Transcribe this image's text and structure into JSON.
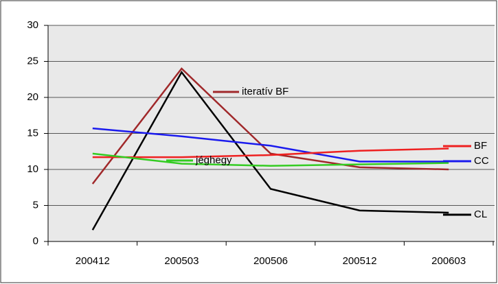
{
  "chart_data": {
    "type": "line",
    "categories": [
      "200412",
      "200503",
      "200506",
      "200512",
      "200603"
    ],
    "series": [
      {
        "name": "iteratív BF",
        "color": "#a0282a",
        "values": [
          8.0,
          24.0,
          12.2,
          10.3,
          10.0
        ]
      },
      {
        "name": "CL",
        "color": "#000000",
        "values": [
          1.6,
          23.5,
          7.3,
          4.3,
          4.0
        ]
      },
      {
        "name": "CC",
        "color": "#1a1aee",
        "values": [
          15.7,
          14.6,
          13.3,
          11.1,
          11.1
        ]
      },
      {
        "name": "BF",
        "color": "#ee2020",
        "values": [
          11.7,
          11.7,
          12.0,
          12.6,
          12.9
        ]
      },
      {
        "name": "jéghegy",
        "color": "#33cc22",
        "values": [
          12.2,
          10.8,
          10.5,
          10.7,
          10.9
        ]
      }
    ],
    "ylim": [
      0,
      30
    ],
    "yticks": [
      0,
      5,
      10,
      15,
      20,
      25,
      30
    ],
    "grid": true
  }
}
